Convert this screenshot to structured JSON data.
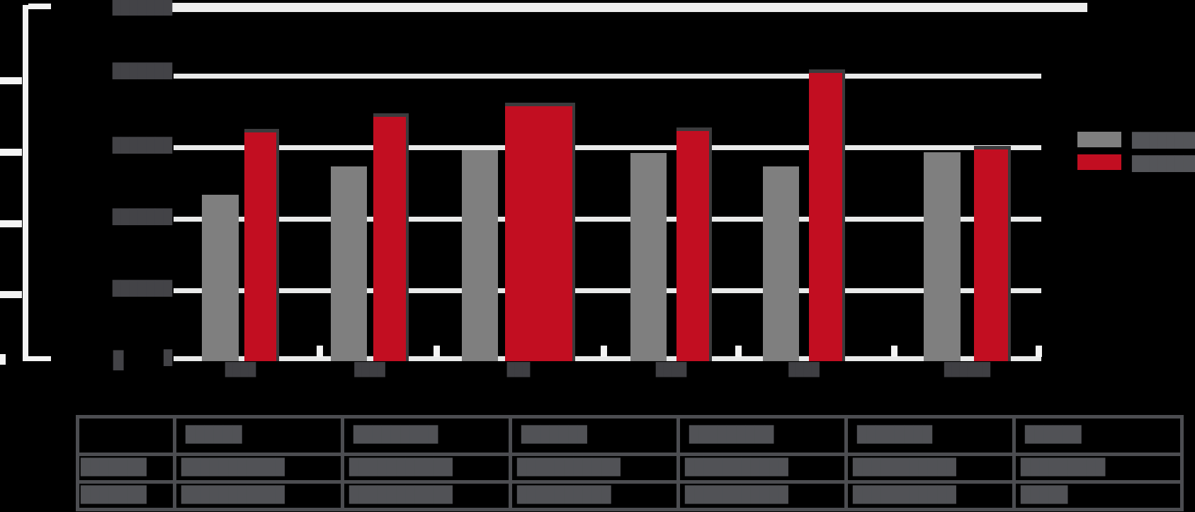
{
  "chart_data": {
    "type": "bar",
    "text_redacted": true,
    "categories": [
      "month-1",
      "month-2",
      "month-3",
      "month-4",
      "month-5",
      "month-6"
    ],
    "series": [
      {
        "name": "gray-series",
        "color": "#7f7f7f",
        "values_est": [
          116500,
          136500,
          148000,
          146000,
          136500,
          146500
        ]
      },
      {
        "name": "red-series",
        "color": "#c20e21",
        "values_est": [
          160500,
          171500,
          179000,
          161500,
          202500,
          148500
        ]
      }
    ],
    "title": "",
    "xlabel": "",
    "ylabel": "",
    "ylim_est": [
      0,
      250000
    ],
    "y_tick_values_est": [
      250000,
      200000,
      150000,
      100000,
      50000,
      0
    ],
    "grid": true,
    "legend_position": "right"
  },
  "chart": {
    "colors": {
      "gray_bar": "#7f7f7f",
      "red_bar": "#c20e21",
      "bar_shadow": "#3b3b3d",
      "gridline": "#e9eaea",
      "axis": "#f4f4f4",
      "redacted_dark": "#434347",
      "redacted_mid": "#515256",
      "background": "#000000"
    },
    "y_axis": {
      "tick_labels": [
        "███████",
        "███████",
        "███████",
        "███████",
        "███████",
        "█"
      ],
      "zero_label": "█"
    },
    "x_axis": {
      "labels": [
        "████",
        "████",
        "███",
        "████",
        "████",
        "██████"
      ]
    },
    "legend": {
      "items": [
        {
          "swatch_color": "#7f7f7f",
          "label": "████████"
        },
        {
          "swatch_color": "#c20e21",
          "label": "████████"
        }
      ]
    }
  },
  "table": {
    "header": [
      "",
      "██████",
      "█████████",
      "███████",
      "█████████",
      "████████",
      "██████"
    ],
    "rows": [
      {
        "label": "███████",
        "cells": [
          "███████████",
          "███████████",
          "███████████",
          "███████████",
          "███████████",
          "█████████"
        ]
      },
      {
        "label": "███████",
        "cells": [
          "███████████",
          "███████████",
          "██████████",
          "███████████",
          "███████████",
          "█████"
        ]
      }
    ]
  }
}
